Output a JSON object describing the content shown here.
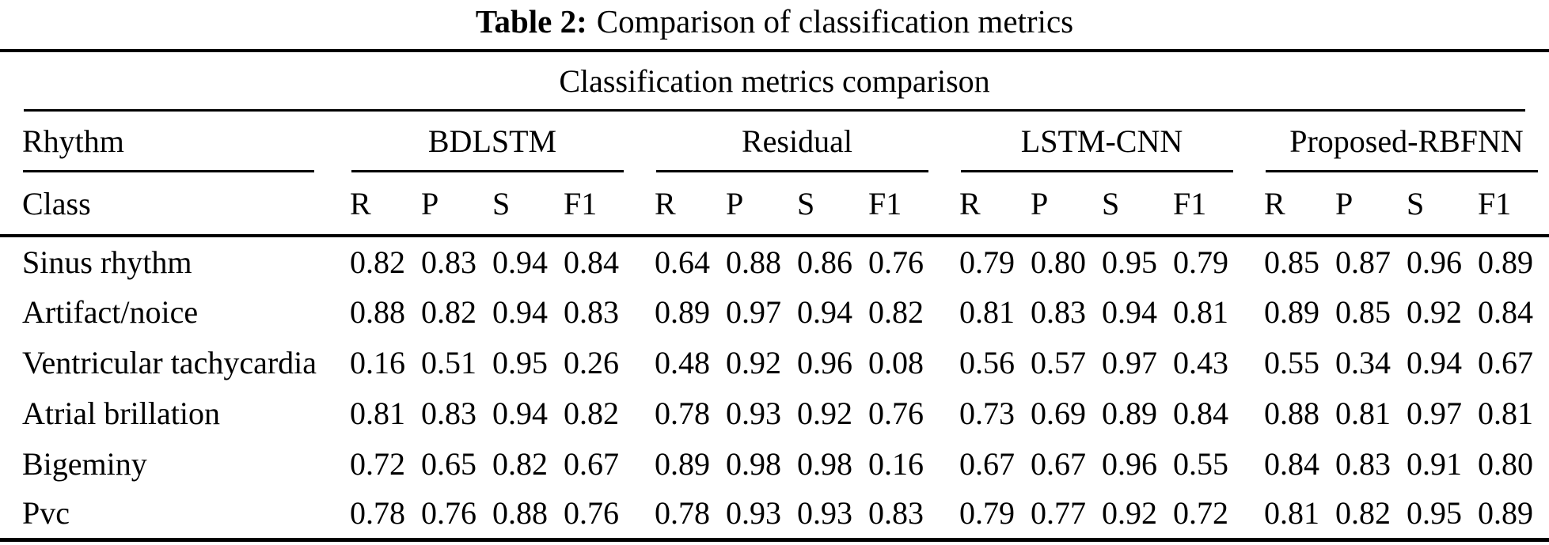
{
  "title": {
    "label": "Table 2:",
    "text": "Comparison of classification metrics"
  },
  "table": {
    "caption": "Classification metrics comparison",
    "row_header": {
      "line1": "Rhythm",
      "line2": "Class"
    },
    "groups": [
      {
        "name": "BDLSTM"
      },
      {
        "name": "Residual"
      },
      {
        "name": "LSTM-CNN"
      },
      {
        "name": "Proposed-RBFNN"
      }
    ],
    "metrics": [
      "R",
      "P",
      "S",
      "F1"
    ],
    "rows": [
      {
        "label": "Sinus rhythm",
        "values": [
          "0.82",
          "0.83",
          "0.94",
          "0.84",
          "0.64",
          "0.88",
          "0.86",
          "0.76",
          "0.79",
          "0.80",
          "0.95",
          "0.79",
          "0.85",
          "0.87",
          "0.96",
          "0.89"
        ]
      },
      {
        "label": "Artifact/noice",
        "values": [
          "0.88",
          "0.82",
          "0.94",
          "0.83",
          "0.89",
          "0.97",
          "0.94",
          "0.82",
          "0.81",
          "0.83",
          "0.94",
          "0.81",
          "0.89",
          "0.85",
          "0.92",
          "0.84"
        ]
      },
      {
        "label": "Ventricular tachycardia",
        "values": [
          "0.16",
          "0.51",
          "0.95",
          "0.26",
          "0.48",
          "0.92",
          "0.96",
          "0.08",
          "0.56",
          "0.57",
          "0.97",
          "0.43",
          "0.55",
          "0.34",
          "0.94",
          "0.67"
        ]
      },
      {
        "label": "Atrial brillation",
        "values": [
          "0.81",
          "0.83",
          "0.94",
          "0.82",
          "0.78",
          "0.93",
          "0.92",
          "0.76",
          "0.73",
          "0.69",
          "0.89",
          "0.84",
          "0.88",
          "0.81",
          "0.97",
          "0.81"
        ]
      },
      {
        "label": "Bigeminy",
        "values": [
          "0.72",
          "0.65",
          "0.82",
          "0.67",
          "0.89",
          "0.98",
          "0.98",
          "0.16",
          "0.67",
          "0.67",
          "0.96",
          "0.55",
          "0.84",
          "0.83",
          "0.91",
          "0.80"
        ]
      },
      {
        "label": "Pvc",
        "values": [
          "0.78",
          "0.76",
          "0.88",
          "0.76",
          "0.78",
          "0.93",
          "0.93",
          "0.83",
          "0.79",
          "0.77",
          "0.92",
          "0.72",
          "0.81",
          "0.82",
          "0.95",
          "0.89"
        ]
      }
    ]
  }
}
